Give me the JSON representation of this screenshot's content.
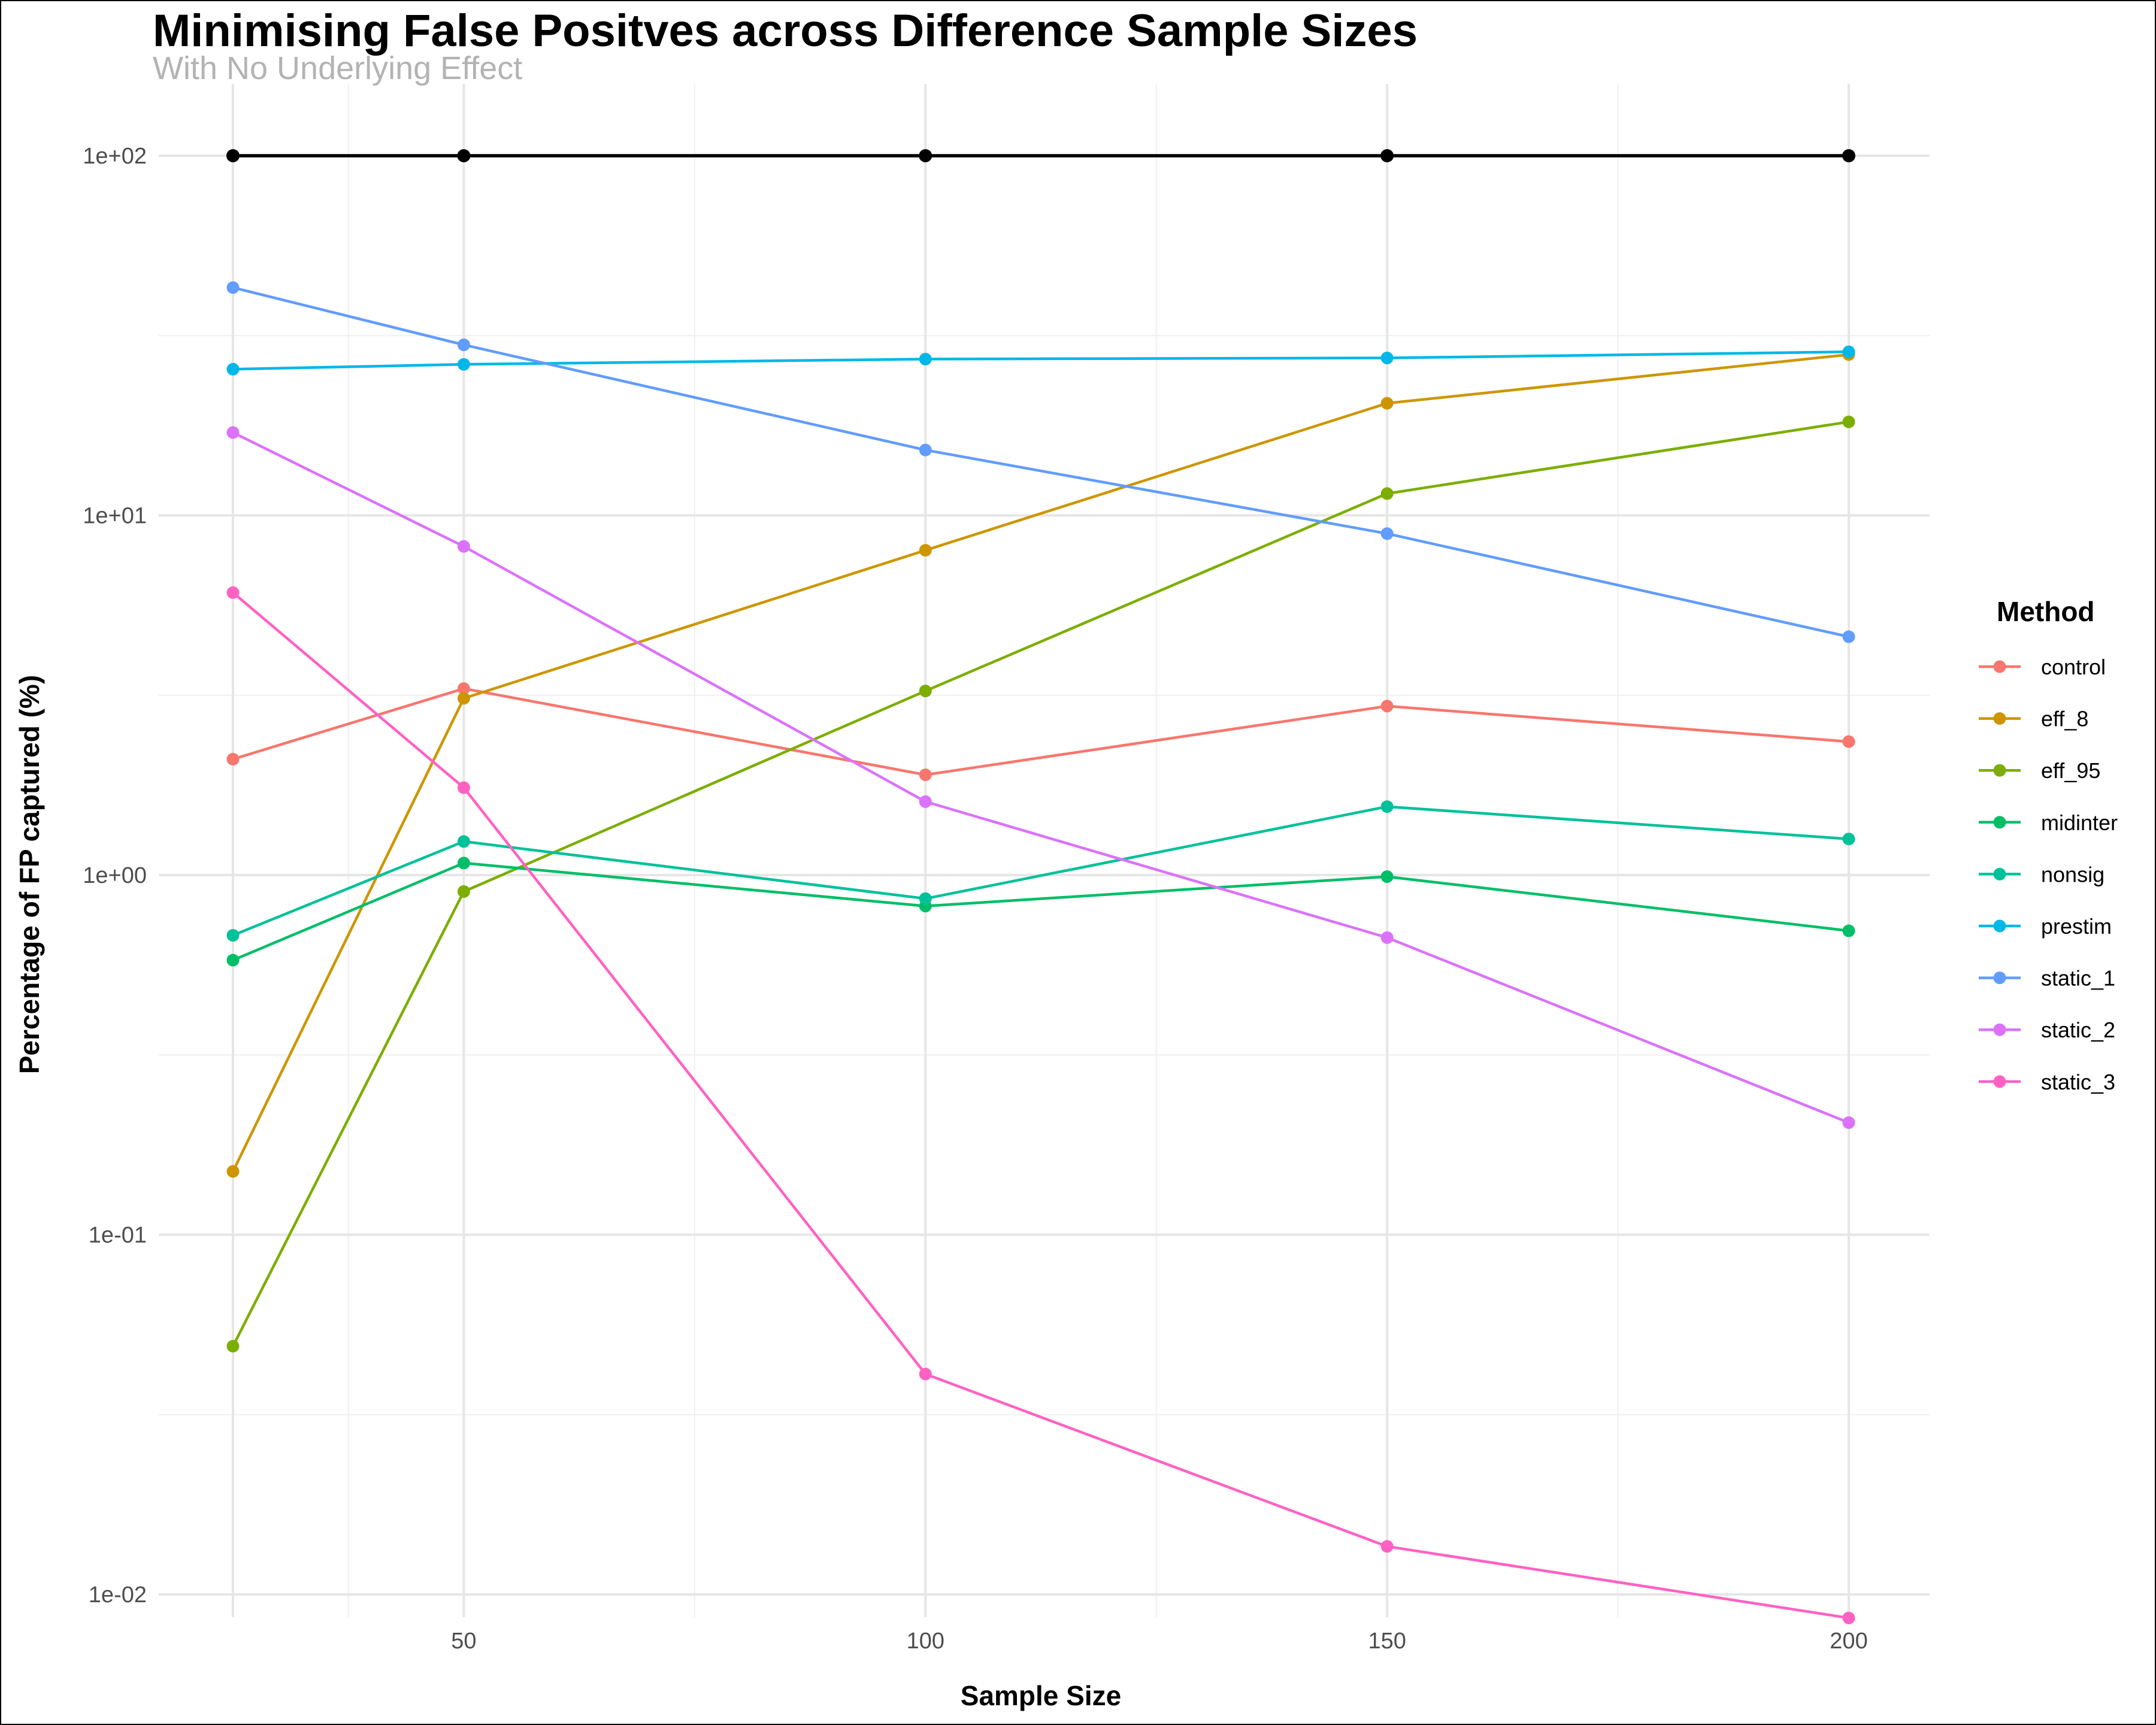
{
  "chart_data": {
    "type": "line",
    "title": "Minimising False Positves across Difference Sample Sizes",
    "subtitle": "With No Underlying Effect",
    "xlabel": "Sample Size",
    "ylabel": "Percentage of FP captured (%)",
    "yscale": "log10",
    "xlim": [
      20,
      209
    ],
    "ylim": [
      0.0085,
      160
    ],
    "x_ticks": [
      50,
      100,
      150,
      200
    ],
    "y_ticks": [
      0.01,
      0.1,
      1,
      10,
      100
    ],
    "y_tick_labels": [
      "1e-02",
      "1e-01",
      "1e+00",
      "1e+01",
      "1e+02"
    ],
    "grid": true,
    "legend": {
      "title": "Method",
      "position": "right"
    },
    "x": [
      25,
      50,
      100,
      150,
      200
    ],
    "reference_line": {
      "color": "#000000",
      "values": [
        100,
        100,
        100,
        100,
        100
      ]
    },
    "series": [
      {
        "name": "control",
        "color": "#F8766D",
        "values": [
          2.1,
          3.3,
          1.9,
          2.95,
          2.35
        ]
      },
      {
        "name": "eff_8",
        "color": "#CD9600",
        "values": [
          0.15,
          3.1,
          8.0,
          20.5,
          28.0
        ]
      },
      {
        "name": "eff_95",
        "color": "#7CAE00",
        "values": [
          0.049,
          0.9,
          3.25,
          11.5,
          18.2
        ]
      },
      {
        "name": "midinter",
        "color": "#00BE67",
        "values": [
          0.58,
          1.08,
          0.82,
          0.99,
          0.7
        ]
      },
      {
        "name": "nonsig",
        "color": "#00C19A",
        "values": [
          0.68,
          1.24,
          0.86,
          1.55,
          1.26
        ]
      },
      {
        "name": "prestim",
        "color": "#00B8E7",
        "values": [
          25.5,
          26.3,
          27.2,
          27.4,
          28.5
        ]
      },
      {
        "name": "static_1",
        "color": "#619CFF",
        "values": [
          43.0,
          29.8,
          15.2,
          8.9,
          4.6
        ]
      },
      {
        "name": "static_2",
        "color": "#DB72FB",
        "values": [
          17.0,
          8.2,
          1.6,
          0.67,
          0.205
        ]
      },
      {
        "name": "static_3",
        "color": "#FF61C3",
        "values": [
          6.1,
          1.75,
          0.041,
          0.0136,
          0.0086
        ]
      }
    ]
  }
}
